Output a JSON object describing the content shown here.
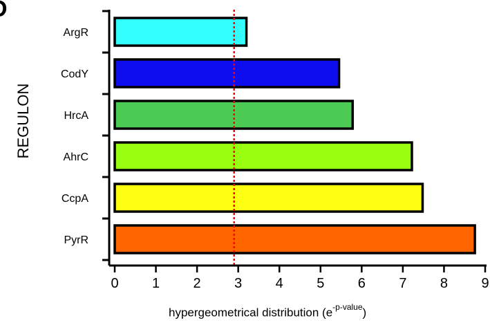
{
  "panel_label": "D",
  "chart_data": {
    "type": "bar",
    "orientation": "horizontal",
    "categories": [
      "ArgR",
      "CodY",
      "HrcA",
      "AhrC",
      "CcpA",
      "PyrR"
    ],
    "values": [
      3.2,
      5.45,
      5.78,
      7.22,
      7.48,
      8.75
    ],
    "colors": [
      "#33FFFF",
      "#0D0DEE",
      "#4DCC55",
      "#99FF11",
      "#FFFF11",
      "#FF6600"
    ],
    "title": "",
    "ylabel": "REGULON",
    "xlabel_main": "hypergeometrical distribution  (e",
    "xlabel_superscript": "-p-value",
    "xlabel_close": ")",
    "xlim": [
      0,
      9
    ],
    "xticks": [
      0,
      1,
      2,
      3,
      4,
      5,
      6,
      7,
      8,
      9
    ],
    "threshold": {
      "value": 2.9,
      "color": "#FF0000",
      "style": "dotted"
    },
    "grid": false,
    "legend": "none"
  }
}
